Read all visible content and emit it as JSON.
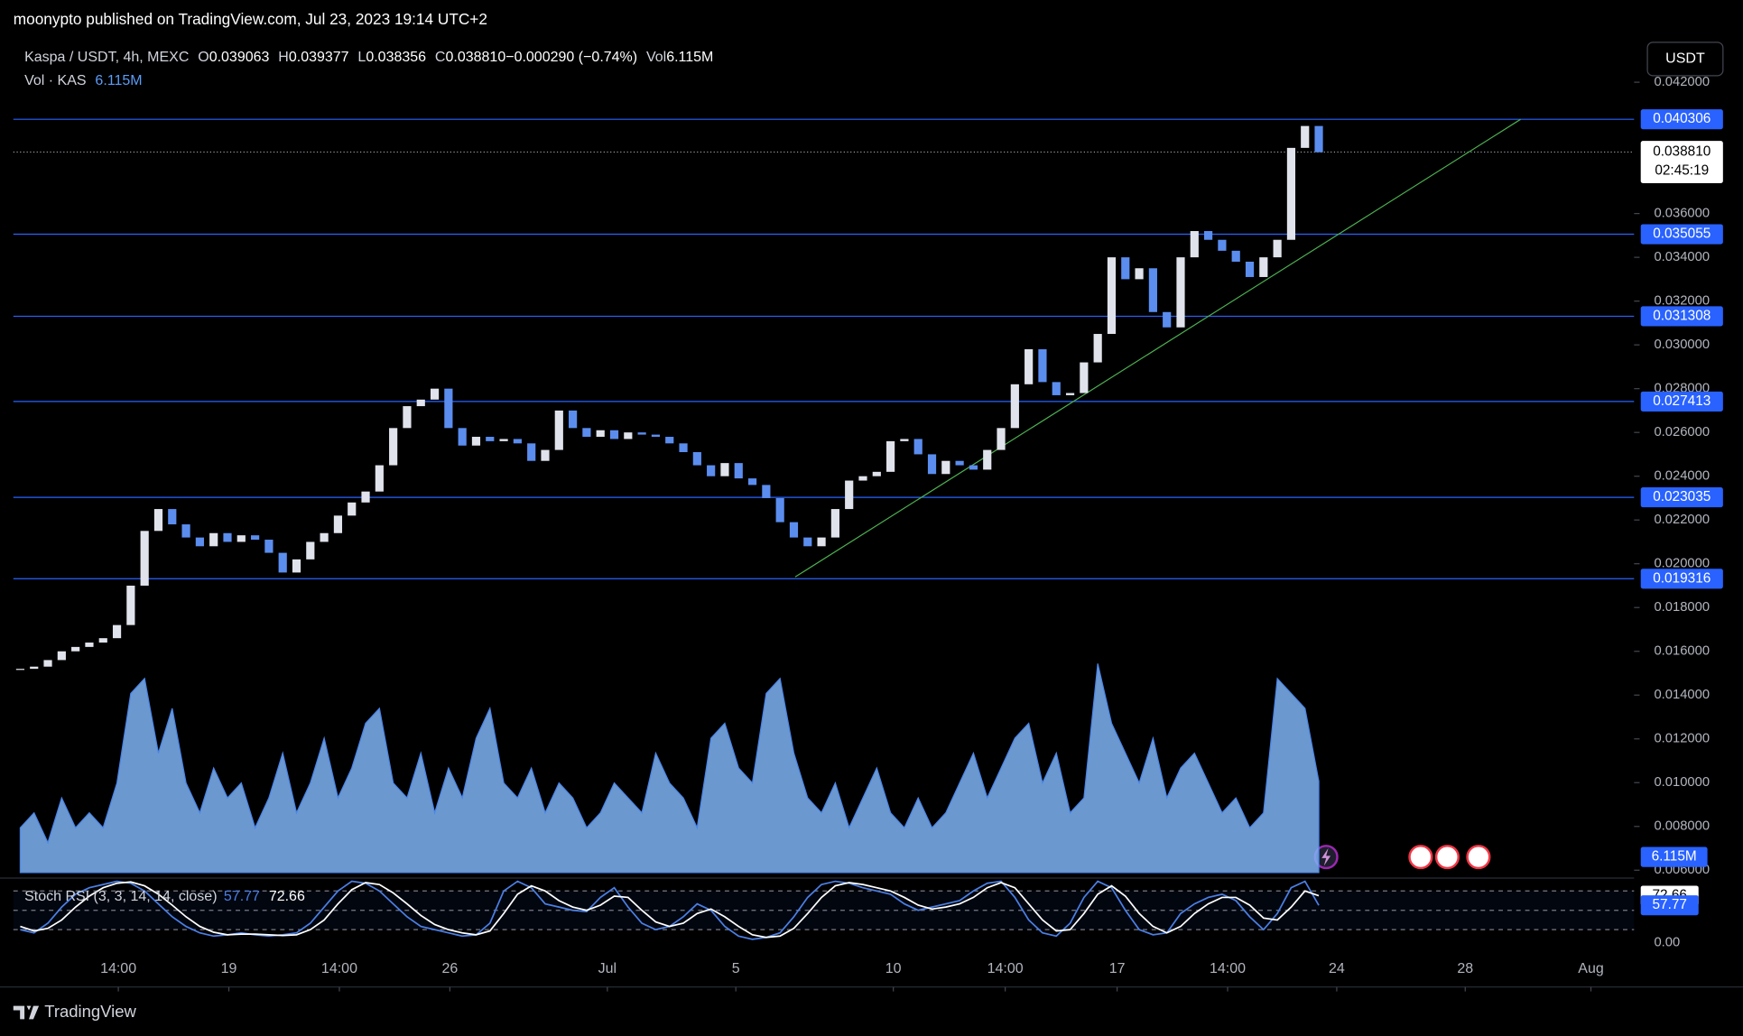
{
  "chart_data": {
    "type": "candlestick",
    "header": "moonypto published on TradingView.com, Jul 23, 2023 19:14 UTC+2",
    "symbol": "Kaspa / USDT, 4h, MEXC",
    "ohlc": [
      {
        "label": "O",
        "value": "0.039063"
      },
      {
        "label": "H",
        "value": "0.039377"
      },
      {
        "label": "L",
        "value": "0.038356"
      },
      {
        "label": "C",
        "value": "0.038810"
      },
      {
        "label": "",
        "value": "−0.000290 (−0.74%)"
      },
      {
        "label": "Vol",
        "value": "6.115M"
      }
    ],
    "volume_label": "Vol · KAS",
    "volume_last": "6.115M",
    "currency_button": "USDT",
    "footer": "TradingView",
    "countdown": "02:45:19",
    "up_color": "#e0e3eb",
    "down_color": "#5b8def",
    "xlim": [
      0,
      117
    ],
    "xticks": [
      {
        "value": 7.6,
        "label": "14:00"
      },
      {
        "value": 15.6,
        "label": "19"
      },
      {
        "value": 23.6,
        "label": "14:00"
      },
      {
        "value": 31.6,
        "label": "26"
      },
      {
        "value": 43.0,
        "label": "Jul"
      },
      {
        "value": 52.3,
        "label": "5"
      },
      {
        "value": 63.7,
        "label": "10"
      },
      {
        "value": 71.8,
        "label": "14:00"
      },
      {
        "value": 79.9,
        "label": "17"
      },
      {
        "value": 87.9,
        "label": "14:00"
      },
      {
        "value": 95.8,
        "label": "24"
      },
      {
        "value": 105.1,
        "label": "28"
      },
      {
        "value": 114.2,
        "label": "Aug"
      }
    ],
    "ylim": [
      0.00564,
      0.04372
    ],
    "yticks": [
      {
        "value": 0.006,
        "label": "0.006000"
      },
      {
        "value": 0.008,
        "label": "0.008000"
      },
      {
        "value": 0.01,
        "label": "0.010000"
      },
      {
        "value": 0.012,
        "label": "0.012000"
      },
      {
        "value": 0.014,
        "label": "0.014000"
      },
      {
        "value": 0.016,
        "label": "0.016000"
      },
      {
        "value": 0.018,
        "label": "0.018000"
      },
      {
        "value": 0.02,
        "label": "0.020000"
      },
      {
        "value": 0.022,
        "label": "0.022000"
      },
      {
        "value": 0.024,
        "label": "0.024000"
      },
      {
        "value": 0.026,
        "label": "0.026000"
      },
      {
        "value": 0.028,
        "label": "0.028000"
      },
      {
        "value": 0.03,
        "label": "0.030000"
      },
      {
        "value": 0.032,
        "label": "0.032000"
      },
      {
        "value": 0.034,
        "label": "0.034000"
      },
      {
        "value": 0.036,
        "label": "0.036000"
      },
      {
        "value": 0.042,
        "label": "0.042000"
      }
    ],
    "levels": [
      0.040306,
      0.035055,
      0.031308,
      0.027413,
      0.023035,
      0.019316
    ],
    "level_color": "#2962ff",
    "last_price": {
      "value": 0.03881,
      "label": "0.038810"
    },
    "trendline": {
      "x": [
        56.6,
        109.1
      ],
      "y": [
        0.0194,
        0.0403
      ],
      "color": "#4caf50"
    },
    "series": [
      {
        "name": "Close",
        "values": [
          0.0152,
          0.0153,
          0.0156,
          0.016,
          0.0162,
          0.0164,
          0.0166,
          0.0172,
          0.019,
          0.0215,
          0.0225,
          0.0218,
          0.0212,
          0.0208,
          0.0214,
          0.021,
          0.0213,
          0.0211,
          0.0205,
          0.0196,
          0.0202,
          0.021,
          0.0214,
          0.0222,
          0.0228,
          0.0233,
          0.0245,
          0.0262,
          0.0272,
          0.0275,
          0.028,
          0.0262,
          0.0254,
          0.0258,
          0.0256,
          0.0257,
          0.0255,
          0.0247,
          0.0252,
          0.027,
          0.0262,
          0.0258,
          0.0261,
          0.0257,
          0.026,
          0.0259,
          0.0258,
          0.0255,
          0.0251,
          0.0245,
          0.024,
          0.0246,
          0.0239,
          0.0236,
          0.023,
          0.0219,
          0.0212,
          0.0208,
          0.0212,
          0.0225,
          0.0238,
          0.024,
          0.0242,
          0.0256,
          0.0257,
          0.025,
          0.0241,
          0.0247,
          0.0245,
          0.0243,
          0.0252,
          0.0262,
          0.0282,
          0.0298,
          0.0283,
          0.0277,
          0.0278,
          0.0292,
          0.0305,
          0.034,
          0.033,
          0.0335,
          0.0315,
          0.0308,
          0.034,
          0.0352,
          0.0348,
          0.0343,
          0.0338,
          0.0331,
          0.034,
          0.0348,
          0.039,
          0.04,
          0.0388
        ]
      }
    ],
    "volume": {
      "color": "#7fb3f5",
      "values": [
        3,
        4,
        2,
        5,
        3,
        4,
        3,
        6,
        12,
        13,
        8,
        11,
        6,
        4,
        7,
        5,
        6,
        3,
        5,
        8,
        4,
        6,
        9,
        5,
        7,
        10,
        11,
        6,
        5,
        8,
        4,
        7,
        5,
        9,
        11,
        6,
        5,
        7,
        4,
        6,
        5,
        3,
        4,
        6,
        5,
        4,
        8,
        6,
        5,
        3,
        9,
        10,
        7,
        6,
        12,
        13,
        8,
        5,
        4,
        6,
        3,
        5,
        7,
        4,
        3,
        5,
        3,
        4,
        6,
        8,
        5,
        7,
        9,
        10,
        6,
        8,
        4,
        5,
        14,
        10,
        8,
        6,
        9,
        5,
        7,
        8,
        6,
        4,
        5,
        3,
        4,
        13,
        12,
        11,
        6.115
      ]
    },
    "stoch": {
      "title": "Stoch RSI (3, 3, 14, 14, close)",
      "ylim": [
        0,
        100
      ],
      "yticks": [
        {
          "value": 0,
          "label": "0.00"
        }
      ],
      "bands": [
        80,
        50,
        20
      ],
      "k": {
        "color": "#4a7fe6",
        "last": 57.77,
        "values": [
          20,
          15,
          30,
          55,
          75,
          85,
          90,
          95,
          92,
          80,
          60,
          40,
          25,
          15,
          10,
          12,
          15,
          12,
          10,
          12,
          15,
          30,
          55,
          80,
          95,
          92,
          80,
          60,
          40,
          25,
          20,
          15,
          10,
          12,
          30,
          80,
          95,
          85,
          60,
          55,
          50,
          48,
          70,
          85,
          55,
          30,
          20,
          25,
          40,
          60,
          50,
          25,
          10,
          5,
          8,
          15,
          40,
          70,
          90,
          95,
          92,
          85,
          80,
          75,
          60,
          50,
          55,
          60,
          65,
          80,
          92,
          95,
          70,
          35,
          15,
          10,
          30,
          70,
          95,
          85,
          50,
          20,
          12,
          15,
          45,
          60,
          70,
          75,
          65,
          40,
          20,
          45,
          85,
          95,
          57.77
        ]
      },
      "d": {
        "color": "#ffffff",
        "last": 72.66,
        "values": [
          25,
          18,
          22,
          35,
          55,
          72,
          85,
          92,
          94,
          88,
          75,
          58,
          40,
          25,
          16,
          12,
          13,
          13,
          12,
          11,
          12,
          20,
          35,
          60,
          82,
          93,
          90,
          77,
          60,
          42,
          28,
          20,
          15,
          12,
          18,
          45,
          75,
          88,
          80,
          65,
          55,
          50,
          58,
          72,
          70,
          50,
          32,
          25,
          30,
          45,
          52,
          40,
          25,
          12,
          8,
          10,
          22,
          45,
          70,
          88,
          93,
          90,
          85,
          80,
          70,
          58,
          52,
          55,
          60,
          70,
          85,
          93,
          85,
          60,
          35,
          18,
          20,
          45,
          75,
          88,
          72,
          45,
          25,
          15,
          25,
          45,
          60,
          70,
          70,
          58,
          38,
          35,
          55,
          80,
          72.66
        ]
      }
    }
  }
}
